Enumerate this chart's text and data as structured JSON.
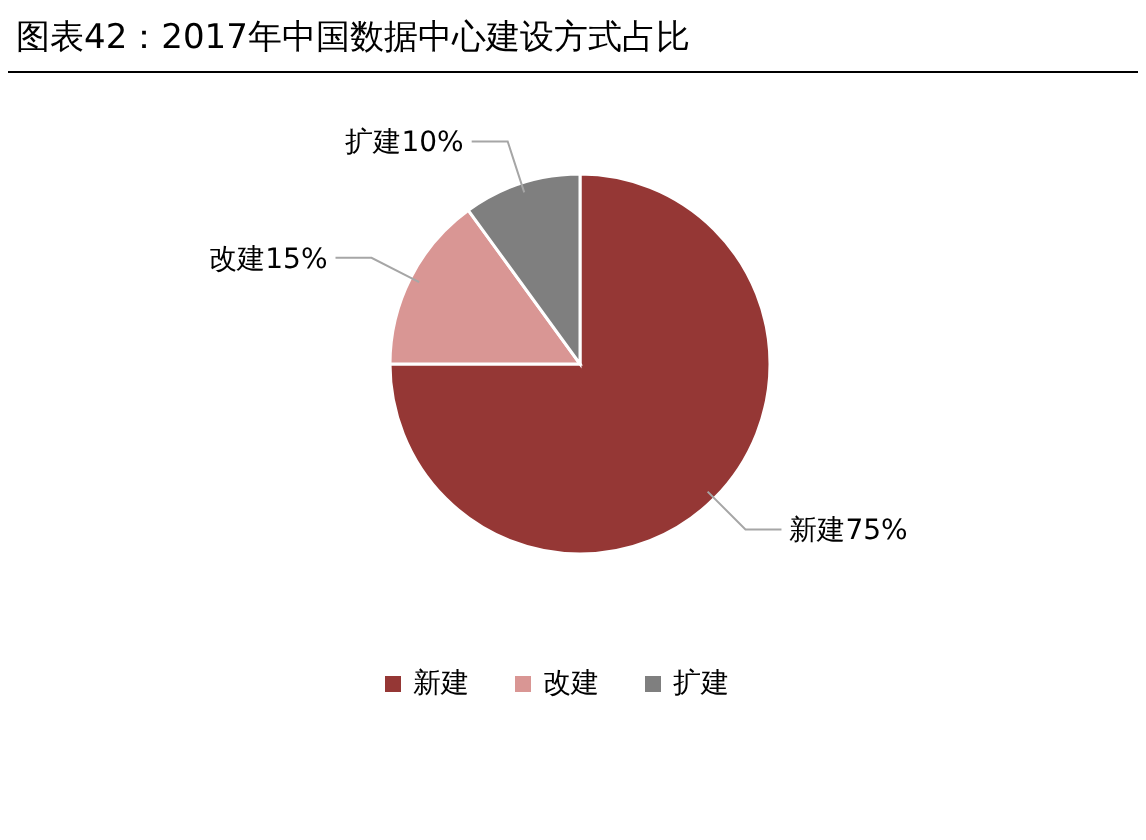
{
  "chart_data": {
    "type": "pie",
    "title": "图表42：2017年中国数据中心建设方式占比",
    "categories": [
      "新建",
      "改建",
      "扩建"
    ],
    "values": [
      75,
      15,
      10
    ],
    "colors": [
      "#953735",
      "#d99694",
      "#7f7f7f"
    ],
    "value_labels": [
      "75%",
      "15%",
      "10%"
    ],
    "legend": "bottom"
  }
}
